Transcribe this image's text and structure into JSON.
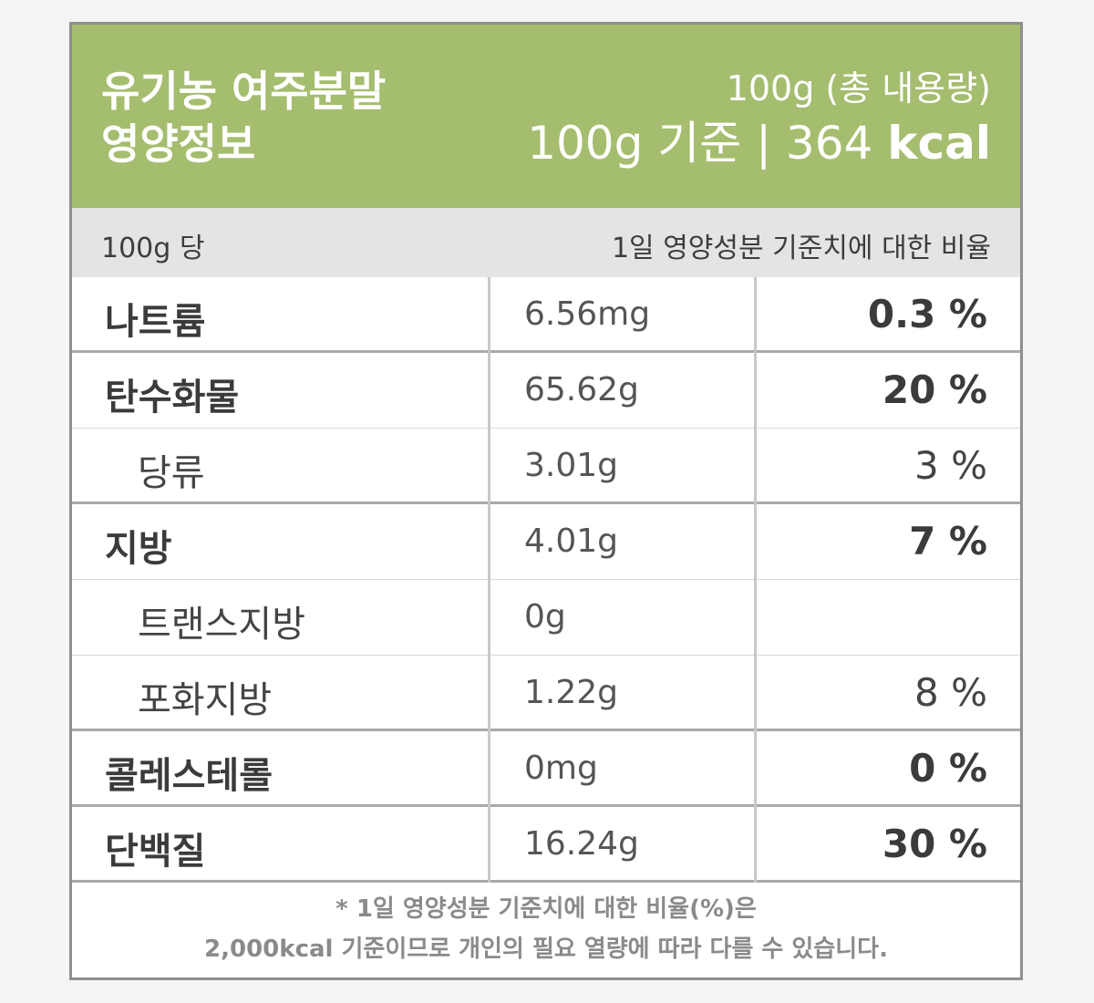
{
  "header": {
    "title_line1": "유기농 여주분말",
    "title_line2": "영양정보",
    "total_content": "100g (총 내용량)",
    "basis_prefix": "100g 기준 | 364 ",
    "basis_unit": "kcal"
  },
  "subheader": {
    "per": "100g 당",
    "ratio": "1일 영양성분 기준치에 대한 비율"
  },
  "nutrients": [
    {
      "name": "나트륨",
      "amount": "6.56mg",
      "percent": "0.3 %"
    },
    {
      "name": "탄수화물",
      "amount": "65.62g",
      "percent": "20 %"
    },
    {
      "name": "당류",
      "amount": "3.01g",
      "percent": "3 %"
    },
    {
      "name": "지방",
      "amount": "4.01g",
      "percent": "7 %"
    },
    {
      "name": "트랜스지방",
      "amount": "0g",
      "percent": ""
    },
    {
      "name": "포화지방",
      "amount": "1.22g",
      "percent": "8 %"
    },
    {
      "name": "콜레스테롤",
      "amount": "0mg",
      "percent": "0 %"
    },
    {
      "name": "단백질",
      "amount": "16.24g",
      "percent": "30 %"
    }
  ],
  "footnote": {
    "line1": "* 1일 영양성분 기준치에 대한 비율(%)은",
    "line2": "2,000kcal 기준이므로 개인의 필요 열량에 따라 다를 수 있습니다."
  },
  "colors": {
    "header_bg": "#a5bd6e",
    "subheader_bg": "#e4e4e4",
    "border": "#8f8f8f"
  }
}
